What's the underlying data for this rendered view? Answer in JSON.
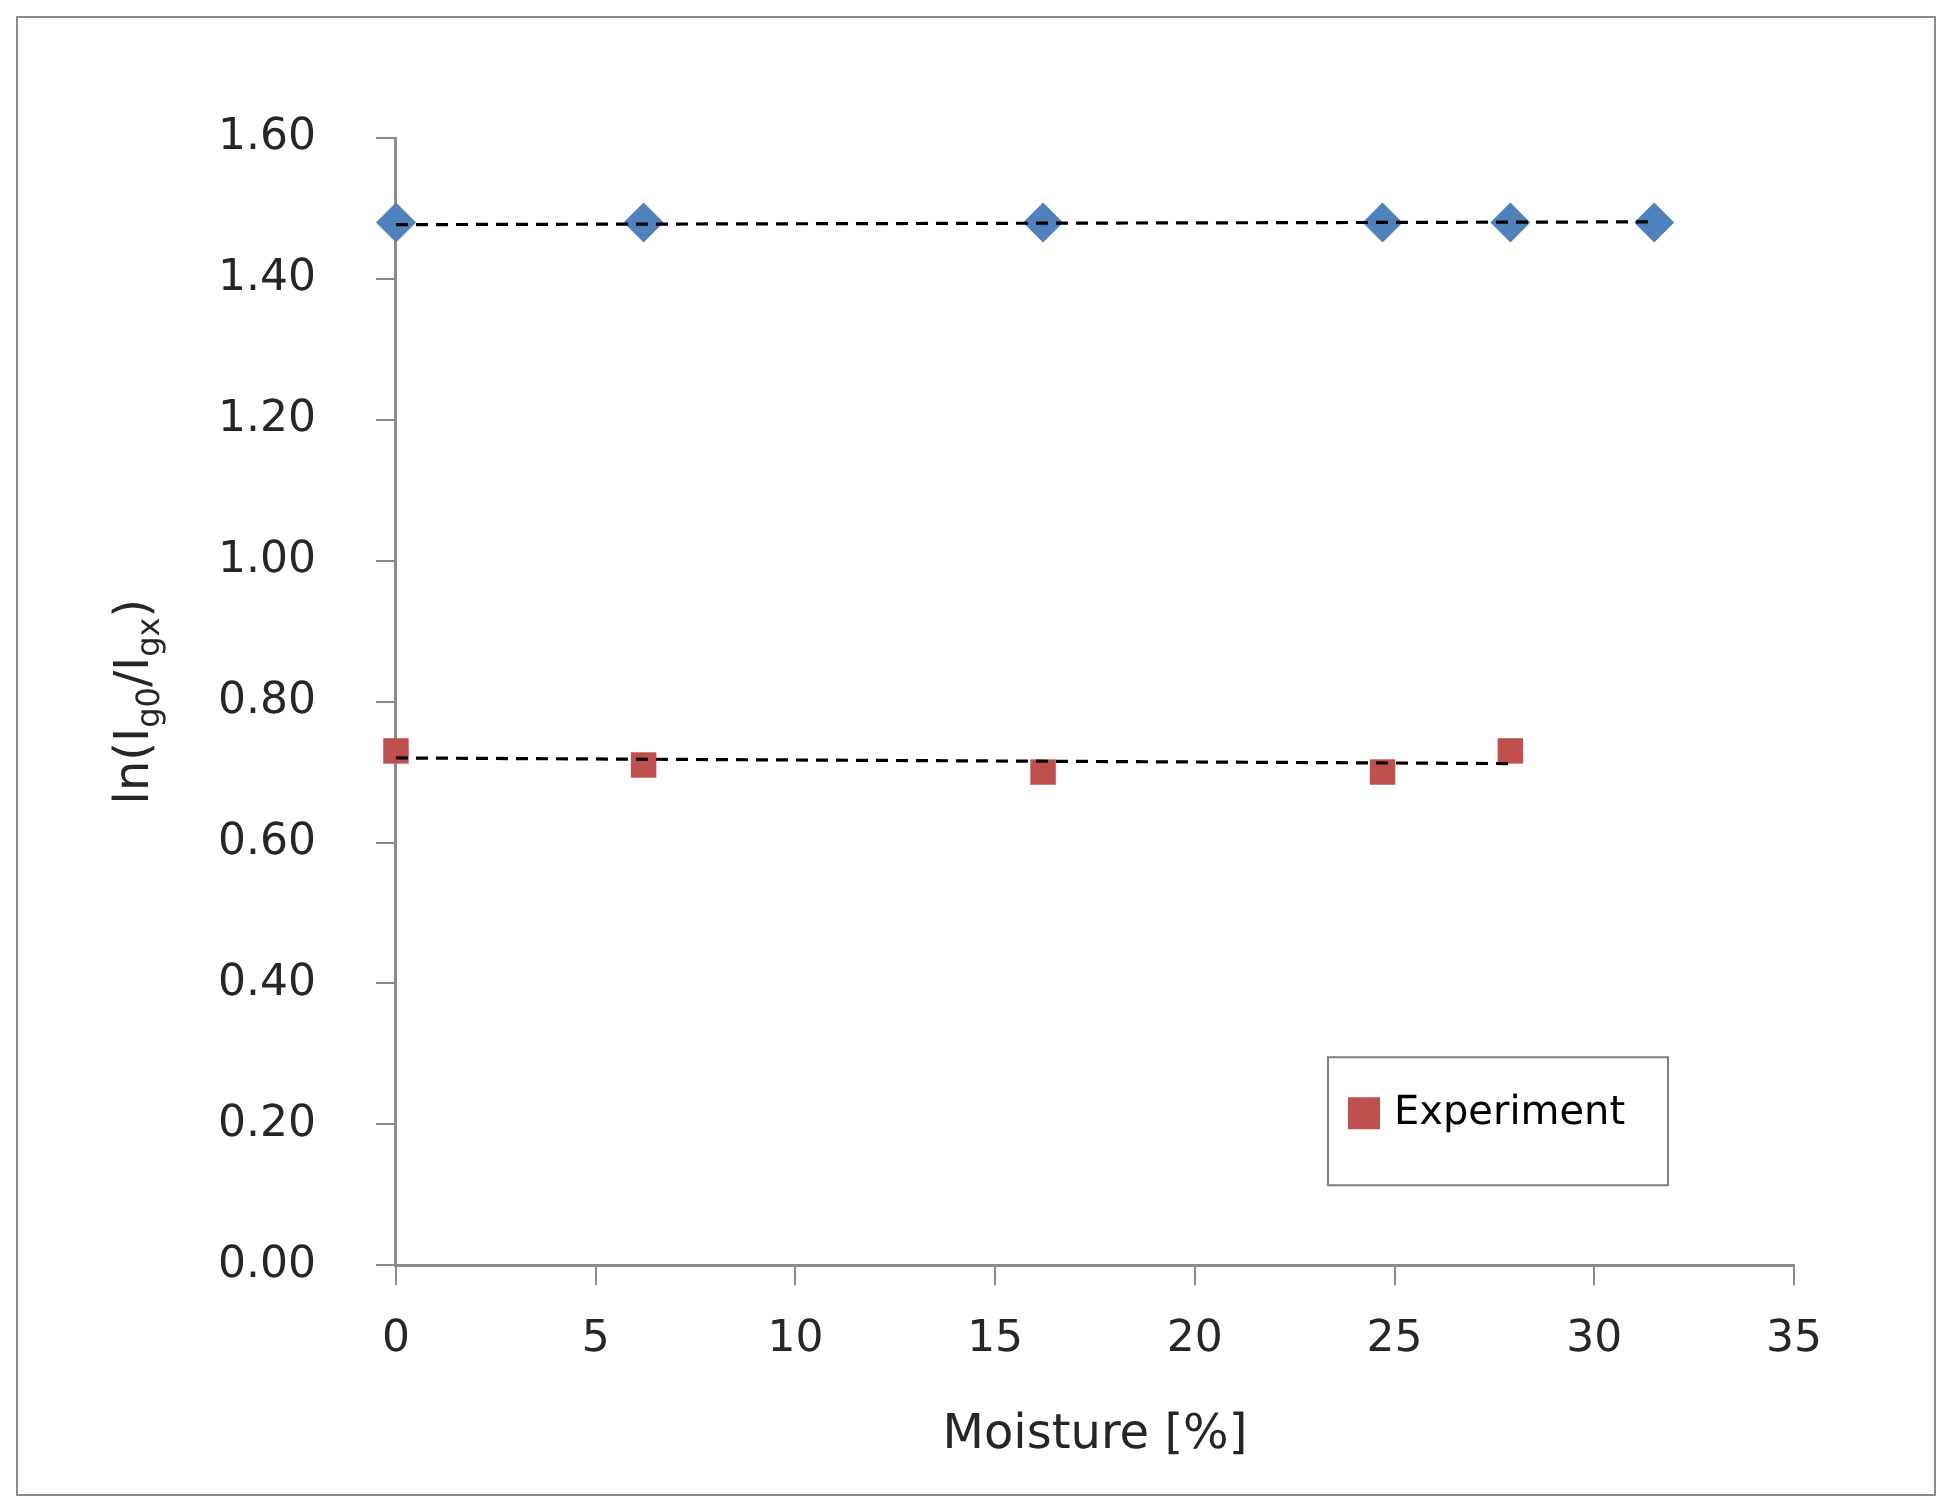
{
  "chart_data": {
    "type": "scatter",
    "xlabel": "Moisture [%]",
    "ylabel": "ln(I$_{g0}$/I$_{gx}$)",
    "xlim": [
      0,
      35
    ],
    "xticks": [
      0,
      5,
      10,
      15,
      20,
      25,
      30,
      35
    ],
    "ylim": [
      0,
      1.6
    ],
    "yticks": [
      {
        "value": 0,
        "label": "0.00"
      },
      {
        "value": 0.2,
        "label": "0.20"
      },
      {
        "value": 0.4,
        "label": "0.40"
      },
      {
        "value": 0.6,
        "label": "0.60"
      },
      {
        "value": 0.8,
        "label": "0.80"
      },
      {
        "value": 1.0,
        "label": "1.00"
      },
      {
        "value": 1.2,
        "label": "1.20"
      },
      {
        "value": 1.4,
        "label": "1.40"
      },
      {
        "value": 1.6,
        "label": "1.60"
      }
    ],
    "grid": false,
    "legend": "bottom right",
    "series": [
      {
        "color": "#4f81bd",
        "marker": "diamond",
        "x": [
          0,
          6.2,
          16.2,
          24.7,
          27.9,
          31.5
        ],
        "values": [
          1.48,
          1.48,
          1.48,
          1.48,
          1.48,
          1.48
        ]
      },
      {
        "name": "Experiment",
        "color": "#c0504d",
        "marker": "square",
        "x": [
          0,
          6.2,
          16.2,
          24.7,
          27.9
        ],
        "values": [
          0.73,
          0.71,
          0.7,
          0.7,
          0.73
        ]
      },
      {
        "type": "line",
        "color": "#000000",
        "marker": "none",
        "line_style": "dashed",
        "x": [
          0,
          31.5
        ],
        "values": [
          1.477,
          1.481
        ]
      },
      {
        "type": "line",
        "color": "#000000",
        "marker": "none",
        "line_style": "dashed",
        "x": [
          0,
          27.9
        ],
        "values": [
          0.72,
          0.712
        ]
      }
    ]
  }
}
